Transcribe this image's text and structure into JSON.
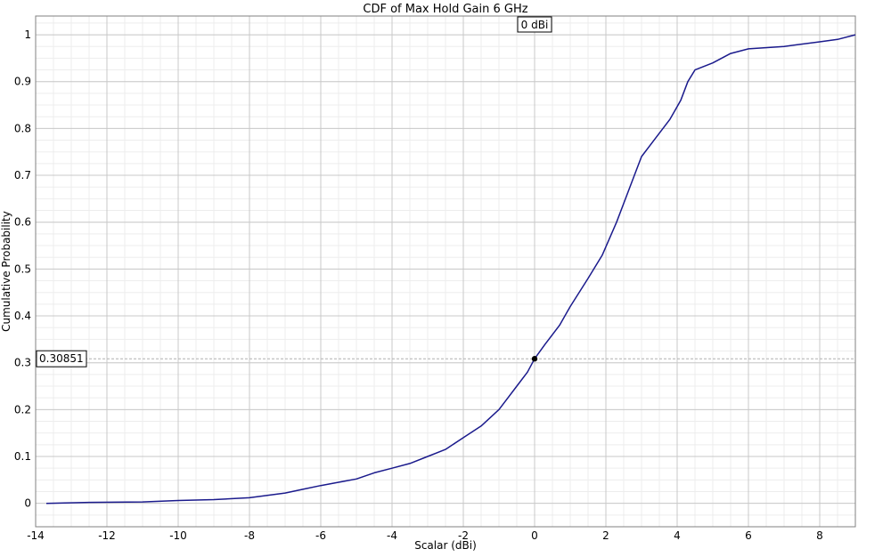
{
  "chart_data": {
    "type": "line",
    "title": "CDF of  Max Hold Gain 6 GHz",
    "xlabel": "Scalar (dBi)",
    "ylabel": "Cumulative Probability",
    "xlim": [
      -14,
      9
    ],
    "ylim": [
      -0.05,
      1.04
    ],
    "x_ticks": [
      -14,
      -12,
      -10,
      -8,
      -6,
      -4,
      -2,
      0,
      2,
      4,
      6,
      8
    ],
    "y_ticks": [
      0,
      0.1,
      0.2,
      0.3,
      0.4,
      0.5,
      0.6,
      0.7,
      0.8,
      0.9,
      1
    ],
    "x_tick_labels": [
      "-14",
      "-12",
      "-10",
      "-8",
      "-6",
      "-4",
      "-2",
      "0",
      "2",
      "4",
      "6",
      "8"
    ],
    "y_tick_labels": [
      "0",
      "0.1",
      "0.2",
      "0.3",
      "0.4",
      "0.5",
      "0.6",
      "0.7",
      "0.8",
      "0.9",
      "1"
    ],
    "grid": true,
    "minor_grid": true,
    "line_color": "#1a1a8c",
    "series": [
      {
        "x": [
          -13.7,
          -12.5,
          -11.0,
          -10.0,
          -9.0,
          -8.0,
          -7.0,
          -6.5,
          -6.0,
          -5.5,
          -5.0,
          -4.5,
          -4.0,
          -3.5,
          -3.0,
          -2.5,
          -2.0,
          -1.5,
          -1.0,
          -0.8,
          -0.5,
          -0.2,
          0.0,
          0.3,
          0.7,
          1.0,
          1.5,
          1.9,
          2.3,
          2.5,
          2.8,
          3.0,
          3.4,
          3.8,
          4.1,
          4.3,
          4.5,
          5.0,
          5.5,
          6.0,
          7.0,
          8.0,
          8.5,
          9.0
        ],
        "y": [
          0,
          0.002,
          0.003,
          0.006,
          0.008,
          0.012,
          0.022,
          0.03,
          0.038,
          0.045,
          0.052,
          0.065,
          0.075,
          0.085,
          0.1,
          0.115,
          0.14,
          0.165,
          0.2,
          0.22,
          0.25,
          0.28,
          0.30851,
          0.34,
          0.38,
          0.42,
          0.48,
          0.53,
          0.6,
          0.64,
          0.7,
          0.74,
          0.78,
          0.82,
          0.86,
          0.9,
          0.925,
          0.94,
          0.96,
          0.97,
          0.975,
          0.985,
          0.99,
          1.0
        ]
      }
    ],
    "marker": {
      "x": 0,
      "y": 0.30851,
      "x_label": "0 dBi",
      "y_label": "0.30851"
    }
  }
}
